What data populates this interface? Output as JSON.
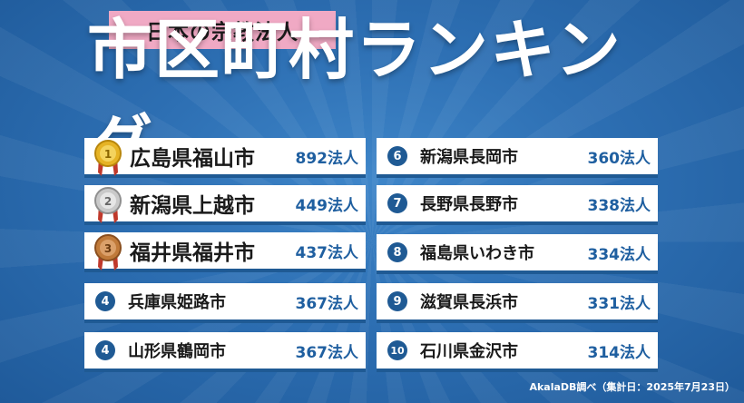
{
  "subtitle": "日本の宗教法人",
  "title": "市区町村ランキング",
  "rankings": [
    {
      "rank": "1",
      "city": "広島県福山市",
      "count": "892法人",
      "medal": "gold-medal-icon",
      "medal_color": "#e6b325"
    },
    {
      "rank": "2",
      "city": "新潟県上越市",
      "count": "449法人",
      "medal": "silver-medal-icon",
      "medal_color": "#c9c9c9"
    },
    {
      "rank": "3",
      "city": "福井県福井市",
      "count": "437法人",
      "medal": "bronze-medal-icon",
      "medal_color": "#c07a3a"
    },
    {
      "rank": "4",
      "city": "兵庫県姫路市",
      "count": "367法人"
    },
    {
      "rank": "4",
      "city": "山形県鶴岡市",
      "count": "367法人"
    },
    {
      "rank": "6",
      "city": "新潟県長岡市",
      "count": "360法人"
    },
    {
      "rank": "7",
      "city": "長野県長野市",
      "count": "338法人"
    },
    {
      "rank": "8",
      "city": "福島県いわき市",
      "count": "334法人"
    },
    {
      "rank": "9",
      "city": "滋賀県長浜市",
      "count": "331法人"
    },
    {
      "rank": "10",
      "city": "石川県金沢市",
      "count": "314法人"
    }
  ],
  "source_note": "AkalaDB調べ（集計日：2025年7月23日）",
  "colors": {
    "accent": "#1f5a94",
    "badge": "#f0a9c4",
    "count_text": "#1f5fa0"
  }
}
